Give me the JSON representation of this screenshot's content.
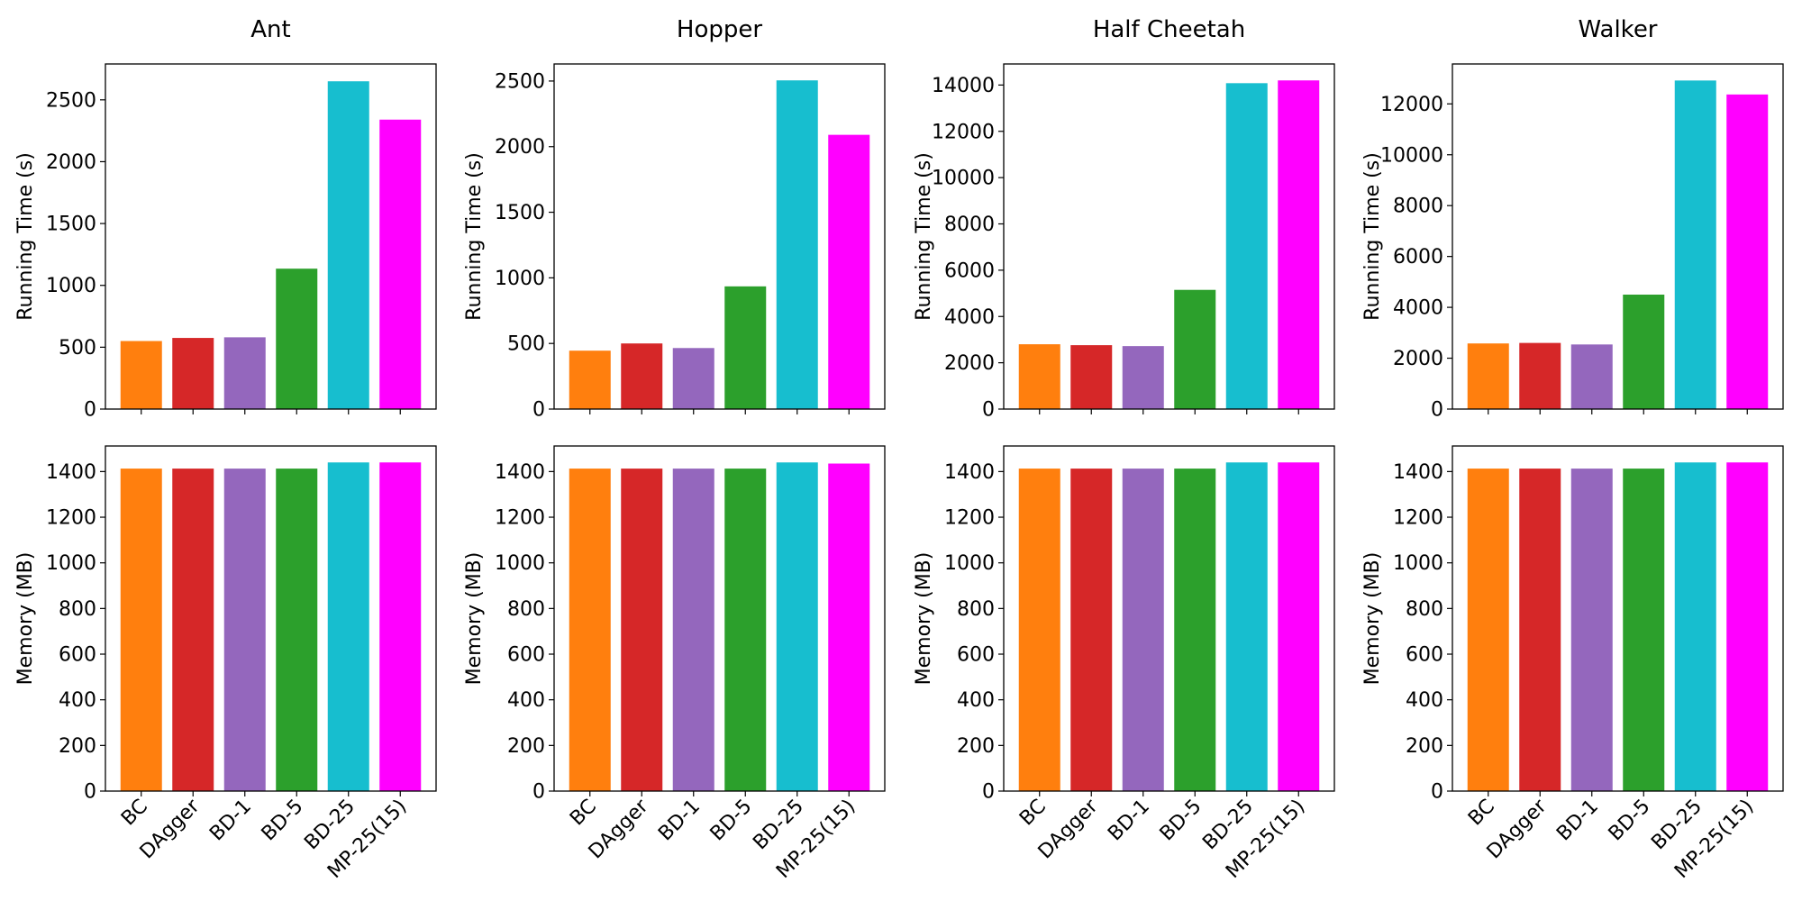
{
  "chart_data": [
    {
      "type": "bar",
      "title": "Ant",
      "ylabel": "Running Time (s)",
      "categories": [
        "BC",
        "DAgger",
        "BD-1",
        "BD-5",
        "BD-25",
        "MP-25(15)"
      ],
      "values": [
        550,
        575,
        580,
        1135,
        2650,
        2340
      ],
      "ylim": [
        0,
        2790
      ],
      "yticks": [
        0,
        500,
        1000,
        1500,
        2000,
        2500
      ]
    },
    {
      "type": "bar",
      "title": "Hopper",
      "ylabel": "Running Time (s)",
      "categories": [
        "BC",
        "DAgger",
        "BD-1",
        "BD-5",
        "BD-25",
        "MP-25(15)"
      ],
      "values": [
        445,
        500,
        465,
        935,
        2505,
        2090
      ],
      "ylim": [
        0,
        2630
      ],
      "yticks": [
        0,
        500,
        1000,
        1500,
        2000,
        2500
      ]
    },
    {
      "type": "bar",
      "title": "Half Cheetah",
      "ylabel": "Running Time (s)",
      "categories": [
        "BC",
        "DAgger",
        "BD-1",
        "BD-5",
        "BD-25",
        "MP-25(15)"
      ],
      "values": [
        2800,
        2760,
        2720,
        5150,
        14080,
        14200
      ],
      "ylim": [
        0,
        14910
      ],
      "yticks": [
        0,
        2000,
        4000,
        6000,
        8000,
        10000,
        12000,
        14000
      ]
    },
    {
      "type": "bar",
      "title": "Walker",
      "ylabel": "Running Time (s)",
      "categories": [
        "BC",
        "DAgger",
        "BD-1",
        "BD-5",
        "BD-25",
        "MP-25(15)"
      ],
      "values": [
        2580,
        2600,
        2540,
        4500,
        12920,
        12370
      ],
      "ylim": [
        0,
        13570
      ],
      "yticks": [
        0,
        2000,
        4000,
        6000,
        8000,
        10000,
        12000
      ]
    },
    {
      "type": "bar",
      "title": "",
      "ylabel": "Memory (MB)",
      "categories": [
        "BC",
        "DAgger",
        "BD-1",
        "BD-5",
        "BD-25",
        "MP-25(15)"
      ],
      "values": [
        1413,
        1413,
        1413,
        1413,
        1440,
        1440
      ],
      "ylim": [
        0,
        1512
      ],
      "yticks": [
        0,
        200,
        400,
        600,
        800,
        1000,
        1200,
        1400
      ]
    },
    {
      "type": "bar",
      "title": "",
      "ylabel": "Memory (MB)",
      "categories": [
        "BC",
        "DAgger",
        "BD-1",
        "BD-5",
        "BD-25",
        "MP-25(15)"
      ],
      "values": [
        1413,
        1413,
        1413,
        1413,
        1440,
        1435
      ],
      "ylim": [
        0,
        1512
      ],
      "yticks": [
        0,
        200,
        400,
        600,
        800,
        1000,
        1200,
        1400
      ]
    },
    {
      "type": "bar",
      "title": "",
      "ylabel": "Memory (MB)",
      "categories": [
        "BC",
        "DAgger",
        "BD-1",
        "BD-5",
        "BD-25",
        "MP-25(15)"
      ],
      "values": [
        1413,
        1413,
        1413,
        1413,
        1440,
        1440
      ],
      "ylim": [
        0,
        1512
      ],
      "yticks": [
        0,
        200,
        400,
        600,
        800,
        1000,
        1200,
        1400
      ]
    },
    {
      "type": "bar",
      "title": "",
      "ylabel": "Memory (MB)",
      "categories": [
        "BC",
        "DAgger",
        "BD-1",
        "BD-5",
        "BD-25",
        "MP-25(15)"
      ],
      "values": [
        1413,
        1413,
        1413,
        1413,
        1440,
        1440
      ],
      "ylim": [
        0,
        1512
      ],
      "yticks": [
        0,
        200,
        400,
        600,
        800,
        1000,
        1200,
        1400
      ]
    }
  ],
  "colors": {
    "BC": "#ff7f0e",
    "DAgger": "#d62728",
    "BD-1": "#9467bd",
    "BD-5": "#2ca02c",
    "BD-25": "#17becf",
    "MP-25(15)": "#ff00ff"
  }
}
